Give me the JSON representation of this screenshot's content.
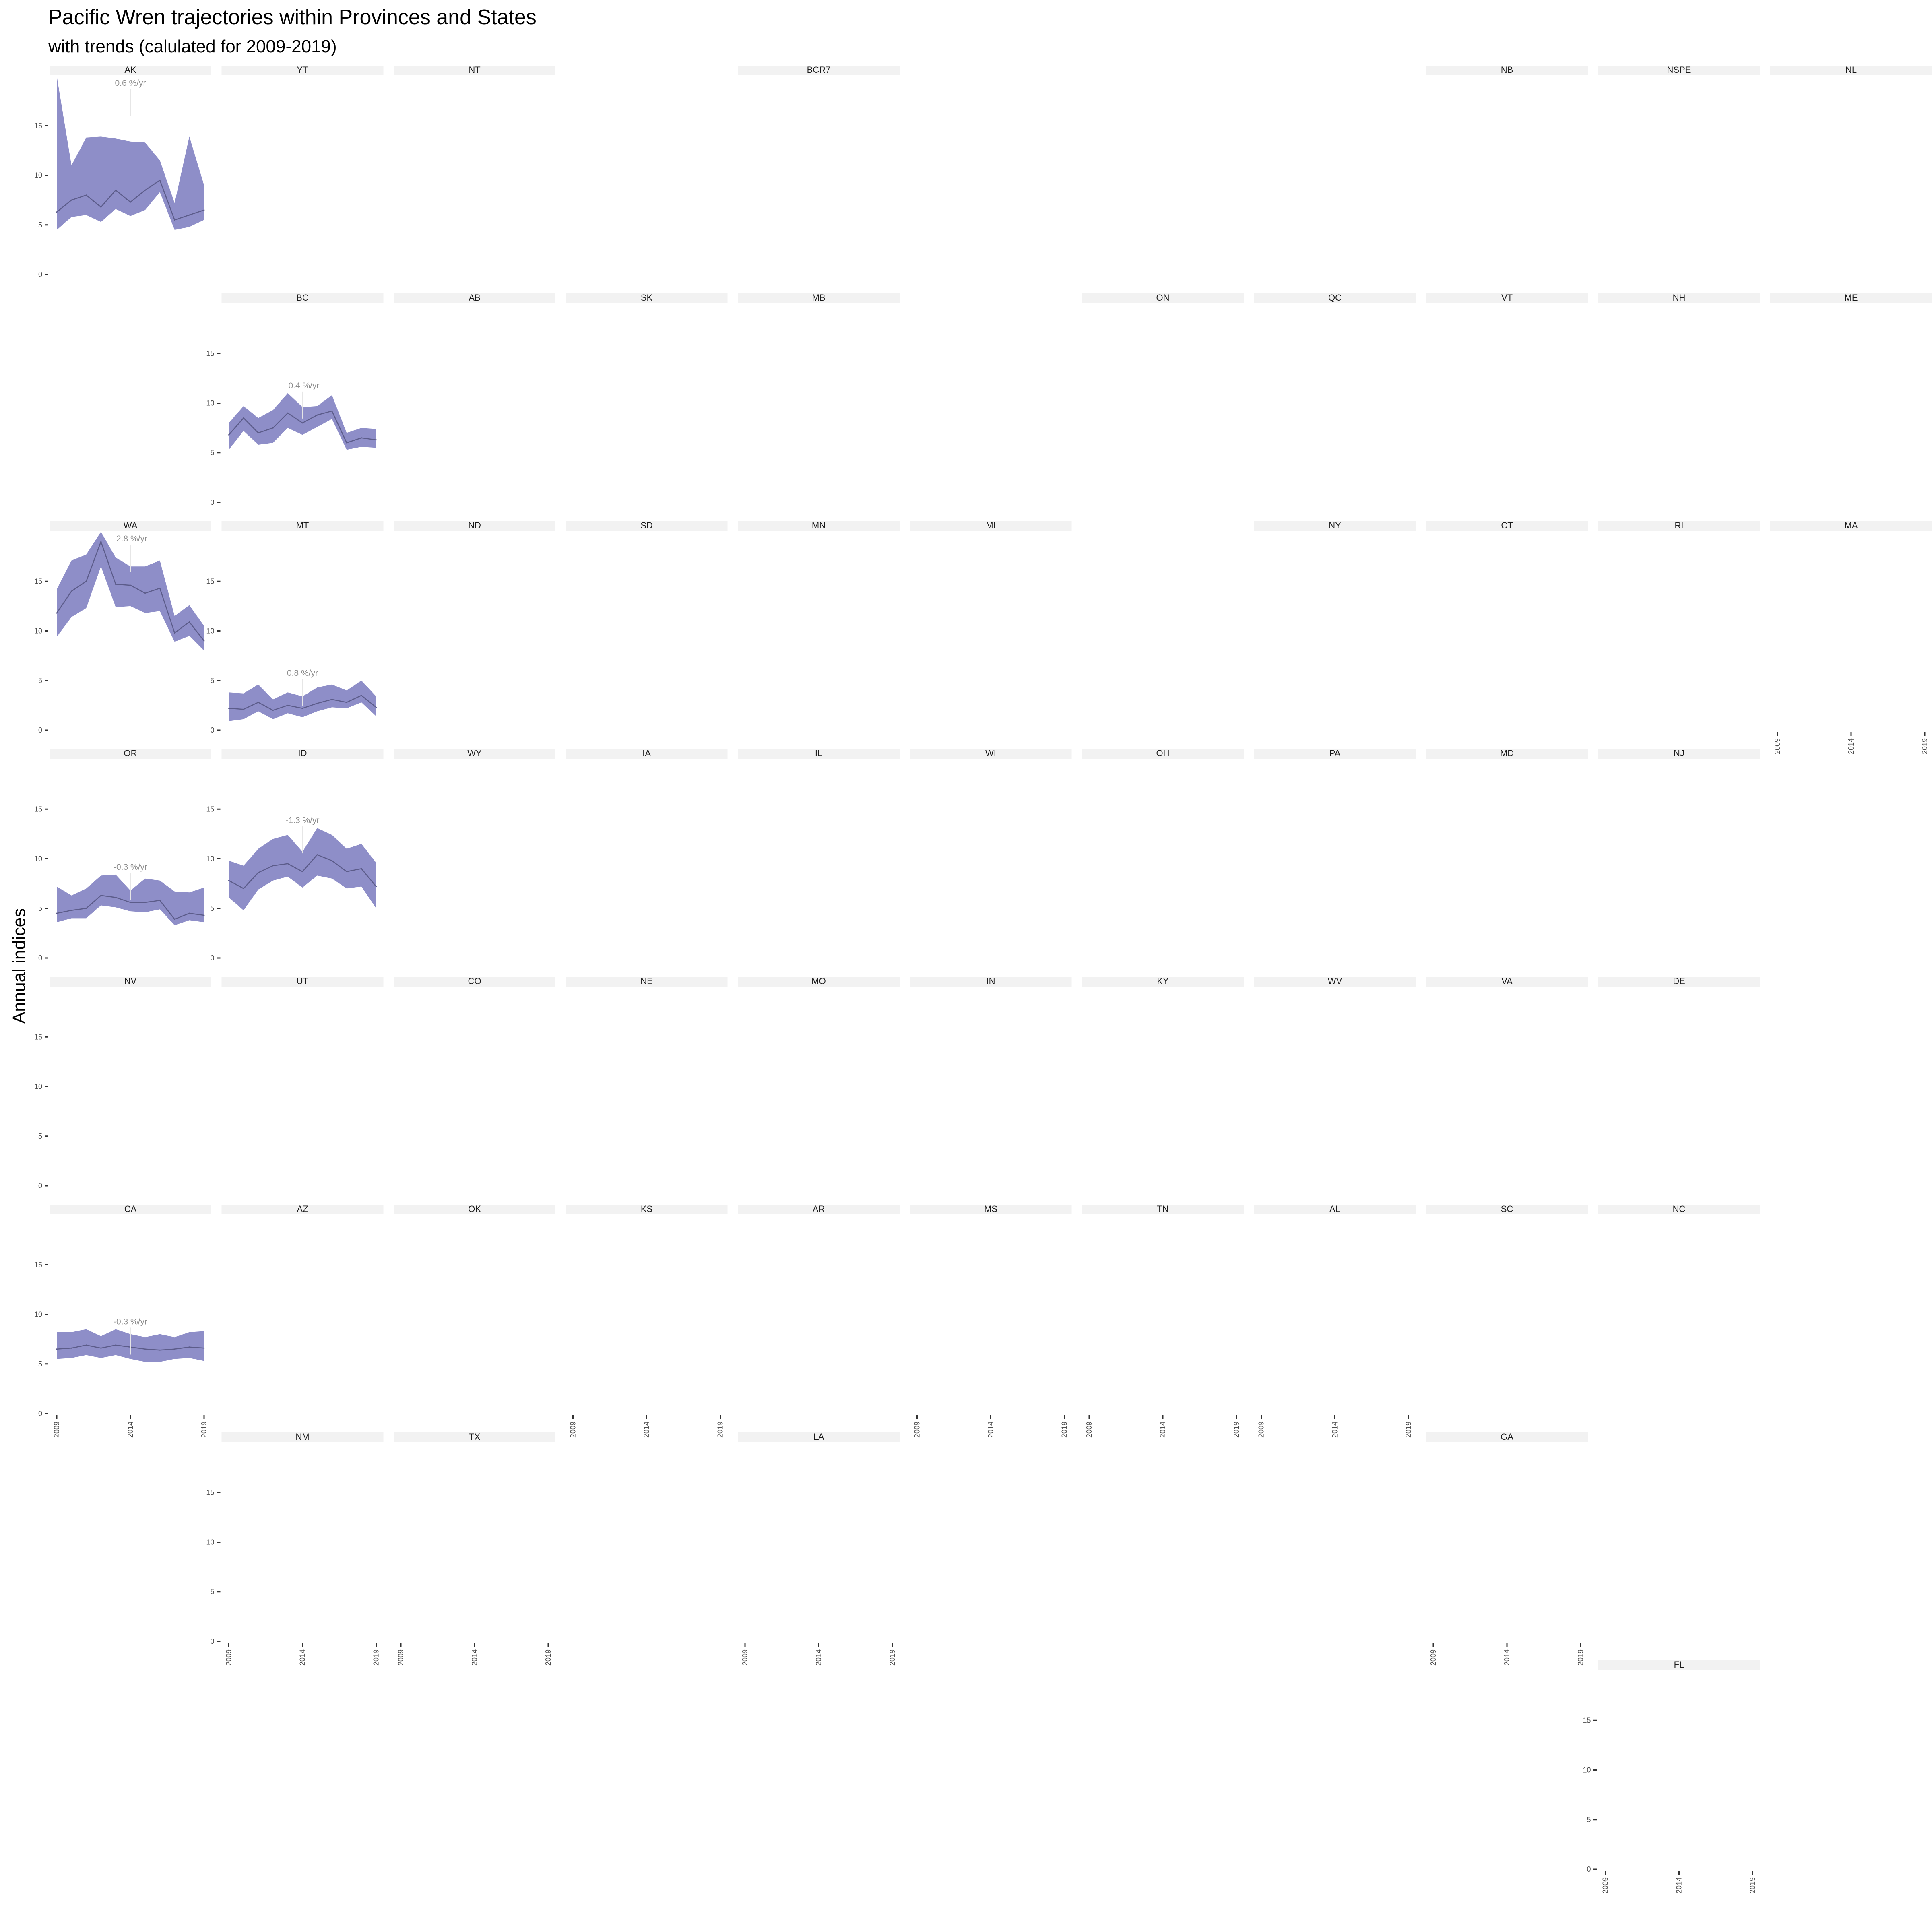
{
  "chart_data": {
    "type": "line",
    "title": "Pacific Wren trajectories within Provinces and States",
    "subtitle": "with trends (calulated for 2009-2019)",
    "ylabel": "Annual indices",
    "xlabel": "",
    "ylim": [
      0,
      20
    ],
    "y_ticks": [
      0,
      5,
      10,
      15
    ],
    "x_ticks": [
      2009,
      2014,
      2019
    ],
    "x": [
      2009,
      2010,
      2011,
      2012,
      2013,
      2014,
      2015,
      2016,
      2017,
      2018,
      2019
    ],
    "colors": {
      "ribbon": "#8e8ec8",
      "line": "#5c5c8a",
      "strip": "#f2f2f2",
      "trend_text": "#8c8c8c"
    },
    "grid": false,
    "panels": [
      {
        "label": "AK",
        "row": 0,
        "col": 0,
        "y_axis": true,
        "trend": "0.6 %/yr",
        "values": [
          6.3,
          7.5,
          8.0,
          6.8,
          8.5,
          7.3,
          8.5,
          9.5,
          5.5,
          6.0,
          6.5
        ],
        "lower": [
          4.5,
          5.8,
          6.0,
          5.3,
          6.6,
          5.9,
          6.5,
          8.3,
          4.5,
          4.8,
          5.5
        ],
        "upper": [
          20.0,
          11.0,
          13.8,
          13.9,
          13.7,
          13.4,
          13.3,
          11.5,
          7.2,
          13.9,
          9.0
        ]
      },
      {
        "label": "YT",
        "row": 0,
        "col": 1
      },
      {
        "label": "NT",
        "row": 0,
        "col": 2
      },
      {
        "label": "BCR7",
        "row": 0,
        "col": 4
      },
      {
        "label": "NB",
        "row": 0,
        "col": 8
      },
      {
        "label": "NSPE",
        "row": 0,
        "col": 9
      },
      {
        "label": "NL",
        "row": 0,
        "col": 10
      },
      {
        "label": "BC",
        "row": 1,
        "col": 1,
        "y_axis": true,
        "trend": "-0.4 %/yr",
        "values": [
          6.8,
          8.5,
          7.0,
          7.5,
          9.0,
          8.0,
          8.8,
          9.2,
          6.0,
          6.5,
          6.3
        ],
        "lower": [
          5.3,
          7.2,
          5.8,
          6.0,
          7.5,
          6.8,
          7.6,
          8.4,
          5.3,
          5.6,
          5.5
        ],
        "upper": [
          8.0,
          9.7,
          8.5,
          9.3,
          11.0,
          9.6,
          9.7,
          10.8,
          7.0,
          7.5,
          7.4
        ]
      },
      {
        "label": "AB",
        "row": 1,
        "col": 2
      },
      {
        "label": "SK",
        "row": 1,
        "col": 3
      },
      {
        "label": "MB",
        "row": 1,
        "col": 4
      },
      {
        "label": "ON",
        "row": 1,
        "col": 6
      },
      {
        "label": "QC",
        "row": 1,
        "col": 7
      },
      {
        "label": "VT",
        "row": 1,
        "col": 8
      },
      {
        "label": "NH",
        "row": 1,
        "col": 9
      },
      {
        "label": "ME",
        "row": 1,
        "col": 10
      },
      {
        "label": "WA",
        "row": 2,
        "col": 0,
        "y_axis": true,
        "trend": "-2.8 %/yr",
        "values": [
          11.8,
          14.0,
          15.0,
          19.0,
          14.7,
          14.6,
          13.8,
          14.3,
          9.8,
          10.9,
          9.0
        ],
        "lower": [
          9.4,
          11.4,
          12.3,
          16.5,
          12.4,
          12.5,
          11.8,
          12.0,
          8.9,
          9.5,
          8.0
        ],
        "upper": [
          14.2,
          17.1,
          17.7,
          20.0,
          17.4,
          16.5,
          16.5,
          17.1,
          11.5,
          12.6,
          10.5
        ]
      },
      {
        "label": "MT",
        "row": 2,
        "col": 1,
        "y_axis": true,
        "trend": "0.8 %/yr",
        "values": [
          2.2,
          2.1,
          2.8,
          2.0,
          2.5,
          2.2,
          2.7,
          3.1,
          2.8,
          3.5,
          2.3
        ],
        "lower": [
          0.9,
          1.1,
          1.9,
          1.1,
          1.7,
          1.3,
          1.9,
          2.3,
          2.2,
          2.8,
          1.4
        ],
        "upper": [
          3.8,
          3.7,
          4.6,
          3.1,
          3.8,
          3.4,
          4.3,
          4.6,
          4.0,
          5.0,
          3.4
        ]
      },
      {
        "label": "ND",
        "row": 2,
        "col": 2
      },
      {
        "label": "SD",
        "row": 2,
        "col": 3
      },
      {
        "label": "MN",
        "row": 2,
        "col": 4
      },
      {
        "label": "MI",
        "row": 2,
        "col": 5
      },
      {
        "label": "NY",
        "row": 2,
        "col": 7
      },
      {
        "label": "CT",
        "row": 2,
        "col": 8
      },
      {
        "label": "RI",
        "row": 2,
        "col": 9
      },
      {
        "label": "MA",
        "row": 2,
        "col": 10,
        "x_axis": true
      },
      {
        "label": "OR",
        "row": 3,
        "col": 0,
        "y_axis": true,
        "trend": "-0.3 %/yr",
        "values": [
          4.5,
          4.8,
          5.0,
          6.3,
          6.1,
          5.6,
          5.6,
          5.8,
          3.9,
          4.5,
          4.3
        ],
        "lower": [
          3.6,
          4.0,
          4.0,
          5.3,
          5.1,
          4.7,
          4.6,
          4.9,
          3.3,
          3.8,
          3.6
        ],
        "upper": [
          7.2,
          6.3,
          7.0,
          8.3,
          8.4,
          6.8,
          8.0,
          7.8,
          6.7,
          6.6,
          7.1
        ]
      },
      {
        "label": "ID",
        "row": 3,
        "col": 1,
        "y_axis": true,
        "trend": "-1.3 %/yr",
        "values": [
          7.8,
          7.0,
          8.6,
          9.3,
          9.5,
          8.7,
          10.4,
          9.8,
          8.7,
          9.0,
          7.2
        ],
        "lower": [
          6.1,
          4.8,
          6.9,
          7.8,
          8.2,
          7.1,
          8.3,
          8.0,
          7.0,
          7.2,
          5.0
        ],
        "upper": [
          9.8,
          9.3,
          11.0,
          12.0,
          12.4,
          10.7,
          13.1,
          12.4,
          11.0,
          11.5,
          9.6
        ]
      },
      {
        "label": "WY",
        "row": 3,
        "col": 2
      },
      {
        "label": "IA",
        "row": 3,
        "col": 3
      },
      {
        "label": "IL",
        "row": 3,
        "col": 4
      },
      {
        "label": "WI",
        "row": 3,
        "col": 5
      },
      {
        "label": "OH",
        "row": 3,
        "col": 6
      },
      {
        "label": "PA",
        "row": 3,
        "col": 7
      },
      {
        "label": "MD",
        "row": 3,
        "col": 8
      },
      {
        "label": "NJ",
        "row": 3,
        "col": 9
      },
      {
        "label": "NV",
        "row": 4,
        "col": 0,
        "y_axis": true
      },
      {
        "label": "UT",
        "row": 4,
        "col": 1
      },
      {
        "label": "CO",
        "row": 4,
        "col": 2
      },
      {
        "label": "NE",
        "row": 4,
        "col": 3
      },
      {
        "label": "MO",
        "row": 4,
        "col": 4
      },
      {
        "label": "IN",
        "row": 4,
        "col": 5
      },
      {
        "label": "KY",
        "row": 4,
        "col": 6
      },
      {
        "label": "WV",
        "row": 4,
        "col": 7
      },
      {
        "label": "VA",
        "row": 4,
        "col": 8
      },
      {
        "label": "DE",
        "row": 4,
        "col": 9
      },
      {
        "label": "CA",
        "row": 5,
        "col": 0,
        "y_axis": true,
        "x_axis": true,
        "trend": "-0.3 %/yr",
        "values": [
          6.5,
          6.6,
          6.9,
          6.6,
          6.9,
          6.7,
          6.5,
          6.4,
          6.5,
          6.7,
          6.6
        ],
        "lower": [
          5.5,
          5.6,
          5.9,
          5.6,
          5.9,
          5.5,
          5.2,
          5.2,
          5.5,
          5.6,
          5.3
        ],
        "upper": [
          8.2,
          8.2,
          8.5,
          7.8,
          8.5,
          8.0,
          7.7,
          8.0,
          7.7,
          8.2,
          8.3
        ]
      },
      {
        "label": "AZ",
        "row": 5,
        "col": 1
      },
      {
        "label": "OK",
        "row": 5,
        "col": 2
      },
      {
        "label": "KS",
        "row": 5,
        "col": 3,
        "x_axis": true
      },
      {
        "label": "AR",
        "row": 5,
        "col": 4
      },
      {
        "label": "MS",
        "row": 5,
        "col": 5,
        "x_axis": true
      },
      {
        "label": "TN",
        "row": 5,
        "col": 6,
        "x_axis": true
      },
      {
        "label": "AL",
        "row": 5,
        "col": 7,
        "x_axis": true
      },
      {
        "label": "SC",
        "row": 5,
        "col": 8
      },
      {
        "label": "NC",
        "row": 5,
        "col": 9
      },
      {
        "label": "NM",
        "row": 6,
        "col": 1,
        "y_axis": true,
        "x_axis": true
      },
      {
        "label": "TX",
        "row": 6,
        "col": 2,
        "x_axis": true
      },
      {
        "label": "LA",
        "row": 6,
        "col": 4,
        "x_axis": true
      },
      {
        "label": "GA",
        "row": 6,
        "col": 8,
        "x_axis": true
      },
      {
        "label": "FL",
        "row": 7,
        "col": 9,
        "y_axis": true,
        "x_axis": true
      }
    ]
  }
}
